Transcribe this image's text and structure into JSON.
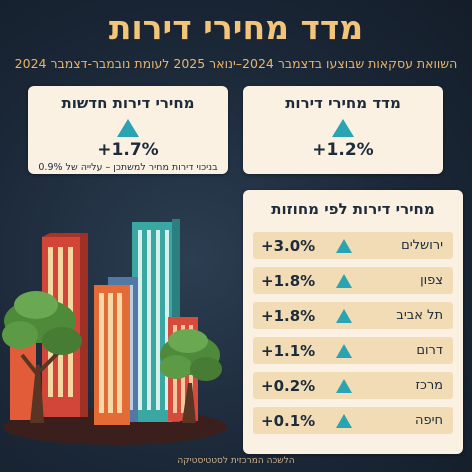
{
  "header": {
    "title": "מדד מחירי דירות",
    "subtitle": "השוואת עסקאות שבוצעו בדצמבר 2024–ינואר 2025 לעומת נובמבר-דצמבר 2024"
  },
  "cards": {
    "housing_index": {
      "title": "מדד מחירי דירות",
      "value": "+1.2%",
      "trend_icon": "up-triangle-icon"
    },
    "new_housing": {
      "title": "מחירי דירות חדשות",
      "value": "+1.7%",
      "note": "בניכוי דירות מחיר למשתכן – עלייה של 0.9%",
      "trend_icon": "up-triangle-icon"
    }
  },
  "regions": {
    "title": "מחירי דירות לפי מחוזות",
    "items": [
      {
        "name": "ירושלים",
        "value": "+3.0%"
      },
      {
        "name": "צפון",
        "value": "+1.8%"
      },
      {
        "name": "תל אביב",
        "value": "+1.8%"
      },
      {
        "name": "דרום",
        "value": "+1.1%"
      },
      {
        "name": "מרכז",
        "value": "+0.2%"
      },
      {
        "name": "חיפה",
        "value": "+0.1%"
      }
    ]
  },
  "footer": {
    "source": "הלשכה המרכזית לסטטיסטיקה"
  },
  "colors": {
    "accent": "#2aa3b3",
    "title": "#f2c57a",
    "card": "#faf1e2",
    "row": "#f2dcb5",
    "background": "#1b2838"
  }
}
